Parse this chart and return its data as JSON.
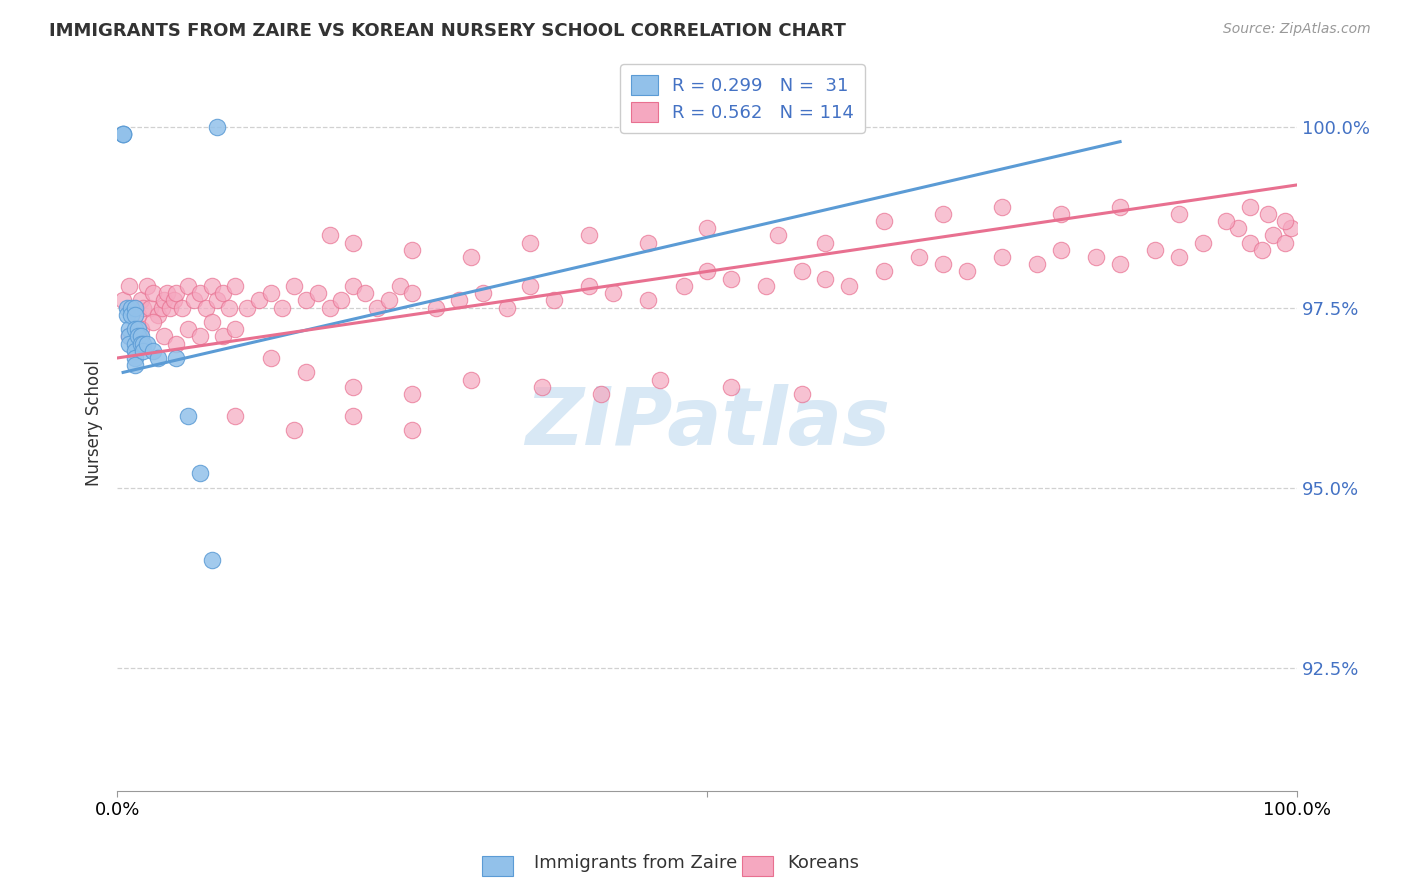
{
  "title": "IMMIGRANTS FROM ZAIRE VS KOREAN NURSERY SCHOOL CORRELATION CHART",
  "source": "Source: ZipAtlas.com",
  "ylabel": "Nursery School",
  "legend_label1": "Immigrants from Zaire",
  "legend_label2": "Koreans",
  "R1": 0.299,
  "N1": 31,
  "R2": 0.562,
  "N2": 114,
  "ytick_labels": [
    "92.5%",
    "95.0%",
    "97.5%",
    "100.0%"
  ],
  "ytick_values": [
    0.925,
    0.95,
    0.975,
    1.0
  ],
  "xlim": [
    0.0,
    1.0
  ],
  "ylim": [
    0.908,
    1.01
  ],
  "color_blue": "#92C1EA",
  "color_pink": "#F5A8C0",
  "color_blue_line": "#5B9BD5",
  "color_pink_line": "#E87090",
  "watermark_color": "#D8E8F5",
  "blue_line_x": [
    0.005,
    0.85
  ],
  "blue_line_y": [
    0.966,
    0.998
  ],
  "pink_line_x": [
    0.0,
    1.0
  ],
  "pink_line_y": [
    0.968,
    0.992
  ],
  "blue_points": {
    "x": [
      0.005,
      0.005,
      0.005,
      0.008,
      0.008,
      0.01,
      0.01,
      0.01,
      0.012,
      0.012,
      0.015,
      0.015,
      0.015,
      0.015,
      0.015,
      0.015,
      0.015,
      0.018,
      0.018,
      0.02,
      0.02,
      0.022,
      0.022,
      0.025,
      0.03,
      0.035,
      0.05,
      0.06,
      0.07,
      0.08,
      0.085
    ],
    "y": [
      0.999,
      0.999,
      0.999,
      0.975,
      0.974,
      0.972,
      0.971,
      0.97,
      0.975,
      0.974,
      0.975,
      0.974,
      0.972,
      0.97,
      0.969,
      0.968,
      0.967,
      0.972,
      0.971,
      0.971,
      0.97,
      0.97,
      0.969,
      0.97,
      0.969,
      0.968,
      0.968,
      0.96,
      0.952,
      0.94,
      1.0
    ]
  },
  "pink_points": {
    "x": [
      0.005,
      0.01,
      0.015,
      0.018,
      0.02,
      0.022,
      0.025,
      0.028,
      0.03,
      0.035,
      0.038,
      0.04,
      0.042,
      0.045,
      0.048,
      0.05,
      0.055,
      0.06,
      0.065,
      0.07,
      0.075,
      0.08,
      0.085,
      0.09,
      0.095,
      0.1,
      0.01,
      0.02,
      0.03,
      0.04,
      0.05,
      0.06,
      0.07,
      0.08,
      0.09,
      0.1,
      0.11,
      0.12,
      0.13,
      0.14,
      0.15,
      0.16,
      0.17,
      0.18,
      0.19,
      0.2,
      0.21,
      0.22,
      0.23,
      0.24,
      0.25,
      0.27,
      0.29,
      0.31,
      0.33,
      0.35,
      0.37,
      0.4,
      0.42,
      0.45,
      0.48,
      0.5,
      0.52,
      0.55,
      0.58,
      0.6,
      0.62,
      0.65,
      0.68,
      0.7,
      0.72,
      0.75,
      0.78,
      0.8,
      0.83,
      0.85,
      0.88,
      0.9,
      0.92,
      0.95,
      0.96,
      0.97,
      0.98,
      0.99,
      0.995,
      0.18,
      0.2,
      0.25,
      0.3,
      0.35,
      0.4,
      0.45,
      0.5,
      0.56,
      0.6,
      0.65,
      0.7,
      0.75,
      0.8,
      0.85,
      0.9,
      0.94,
      0.96,
      0.975,
      0.99,
      0.13,
      0.16,
      0.2,
      0.25,
      0.3,
      0.36,
      0.41,
      0.46,
      0.52,
      0.58,
      0.1,
      0.15,
      0.2,
      0.25
    ],
    "y": [
      0.976,
      0.978,
      0.975,
      0.974,
      0.976,
      0.975,
      0.978,
      0.975,
      0.977,
      0.974,
      0.975,
      0.976,
      0.977,
      0.975,
      0.976,
      0.977,
      0.975,
      0.978,
      0.976,
      0.977,
      0.975,
      0.978,
      0.976,
      0.977,
      0.975,
      0.978,
      0.971,
      0.972,
      0.973,
      0.971,
      0.97,
      0.972,
      0.971,
      0.973,
      0.971,
      0.972,
      0.975,
      0.976,
      0.977,
      0.975,
      0.978,
      0.976,
      0.977,
      0.975,
      0.976,
      0.978,
      0.977,
      0.975,
      0.976,
      0.978,
      0.977,
      0.975,
      0.976,
      0.977,
      0.975,
      0.978,
      0.976,
      0.978,
      0.977,
      0.976,
      0.978,
      0.98,
      0.979,
      0.978,
      0.98,
      0.979,
      0.978,
      0.98,
      0.982,
      0.981,
      0.98,
      0.982,
      0.981,
      0.983,
      0.982,
      0.981,
      0.983,
      0.982,
      0.984,
      0.986,
      0.984,
      0.983,
      0.985,
      0.984,
      0.986,
      0.985,
      0.984,
      0.983,
      0.982,
      0.984,
      0.985,
      0.984,
      0.986,
      0.985,
      0.984,
      0.987,
      0.988,
      0.989,
      0.988,
      0.989,
      0.988,
      0.987,
      0.989,
      0.988,
      0.987,
      0.968,
      0.966,
      0.964,
      0.963,
      0.965,
      0.964,
      0.963,
      0.965,
      0.964,
      0.963,
      0.96,
      0.958,
      0.96,
      0.958
    ]
  }
}
